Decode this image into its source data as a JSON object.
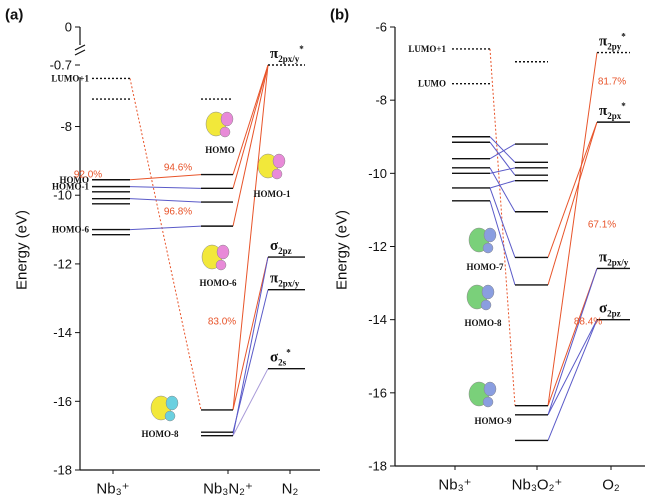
{
  "chart_data": [
    {
      "type": "energy-level",
      "panel_label": "(a)",
      "y_label": "Energy (eV)",
      "categories": [
        "Nb₃⁺",
        "Nb₃N₂⁺",
        "N₂"
      ],
      "ylim": [
        -18,
        -6.5
      ],
      "yticks": [
        -18,
        -16,
        -14,
        -12,
        -10,
        -8
      ],
      "ylim_upper": [
        -0.7,
        0
      ],
      "yticks_upper": [
        -0.7,
        0
      ],
      "levels": [
        [
          {
            "energy": -6.6,
            "style": "dotted",
            "name": "LUMO+1"
          },
          {
            "energy": -7.2,
            "style": "dotted"
          },
          {
            "energy": -9.55,
            "name": "HOMO"
          },
          {
            "energy": -9.75,
            "name": "HOMO-1"
          },
          {
            "energy": -9.9
          },
          {
            "energy": -10.1
          },
          {
            "energy": -10.25
          },
          {
            "energy": -11.0,
            "name": "HOMO-6"
          },
          {
            "energy": -11.15
          }
        ],
        [
          {
            "energy": -7.2,
            "style": "dotted"
          },
          {
            "energy": -9.4
          },
          {
            "energy": -9.8
          },
          {
            "energy": -10.2
          },
          {
            "energy": -10.9
          },
          {
            "energy": -16.25
          },
          {
            "energy": -16.9
          },
          {
            "energy": -17.0
          }
        ],
        [
          {
            "energy": -0.7,
            "style": "dotted",
            "label": {
              "text": "π",
              "sub": "2px/y",
              "sup": "*"
            }
          },
          {
            "energy": -11.8,
            "label": {
              "text": "σ",
              "sub": "2pz"
            }
          },
          {
            "energy": -12.75,
            "label": {
              "text": "π",
              "sub": "2px/y"
            }
          },
          {
            "energy": -15.05,
            "label": {
              "text": "σ",
              "sub": "2s",
              "sup": "*"
            }
          }
        ]
      ],
      "links": [
        {
          "from": [
            0,
            0
          ],
          "to": [
            1,
            5
          ],
          "color": "#e8542a",
          "style": "dotted"
        },
        {
          "from": [
            1,
            5
          ],
          "to": [
            2,
            0
          ],
          "color": "#e8542a"
        },
        {
          "from": [
            0,
            2
          ],
          "to": [
            1,
            1
          ],
          "color": "#e8542a"
        },
        {
          "from": [
            1,
            1
          ],
          "to": [
            2,
            0
          ],
          "color": "#e8542a"
        },
        {
          "from": [
            1,
            2
          ],
          "to": [
            2,
            0
          ],
          "color": "#e8542a"
        },
        {
          "from": [
            1,
            4
          ],
          "to": [
            2,
            0
          ],
          "color": "#e8542a"
        },
        {
          "from": [
            0,
            3
          ],
          "to": [
            1,
            2
          ],
          "color": "#5a5ac8"
        },
        {
          "from": [
            0,
            5
          ],
          "to": [
            1,
            3
          ],
          "color": "#5a5ac8"
        },
        {
          "from": [
            0,
            7
          ],
          "to": [
            1,
            4
          ],
          "color": "#5a5ac8"
        },
        {
          "from": [
            1,
            5
          ],
          "to": [
            2,
            1
          ],
          "color": "#e8542a"
        },
        {
          "from": [
            1,
            6
          ],
          "to": [
            2,
            2
          ],
          "color": "#5a5ac8"
        },
        {
          "from": [
            1,
            7
          ],
          "to": [
            2,
            1
          ],
          "color": "#5a5ac8"
        },
        {
          "from": [
            1,
            7
          ],
          "to": [
            2,
            3
          ],
          "color": "#a89ad8"
        }
      ],
      "orbital_labels": [
        "HOMO",
        "HOMO-1",
        "HOMO-6",
        "HOMO-8"
      ],
      "annotations": [
        "92.0%",
        "94.6%",
        "96.8%",
        "83.0%"
      ]
    },
    {
      "type": "energy-level",
      "panel_label": "(b)",
      "y_label": "Energy (eV)",
      "categories": [
        "Nb₃⁺",
        "Nb₃O₂⁺",
        "O₂"
      ],
      "ylim": [
        -18,
        -6
      ],
      "yticks": [
        -18,
        -16,
        -14,
        -12,
        -10,
        -8,
        -6
      ],
      "levels": [
        [
          {
            "energy": -6.6,
            "style": "dotted",
            "name": "LUMO+1"
          },
          {
            "energy": -7.55,
            "style": "dotted",
            "name": "LUMO"
          },
          {
            "energy": -9.0
          },
          {
            "energy": -9.15
          },
          {
            "energy": -9.6
          },
          {
            "energy": -9.85
          },
          {
            "energy": -10.0
          },
          {
            "energy": -10.4
          },
          {
            "energy": -10.75
          }
        ],
        [
          {
            "energy": -6.95,
            "style": "dotted"
          },
          {
            "energy": -9.2
          },
          {
            "energy": -9.7
          },
          {
            "energy": -9.85
          },
          {
            "energy": -10.05
          },
          {
            "energy": -10.2
          },
          {
            "energy": -11.05
          },
          {
            "energy": -12.3
          },
          {
            "energy": -13.05
          },
          {
            "energy": -16.35
          },
          {
            "energy": -16.6
          },
          {
            "energy": -17.3
          }
        ],
        [
          {
            "energy": -6.7,
            "style": "dotted",
            "label": {
              "text": "π",
              "sub": "2py",
              "sup": "*"
            }
          },
          {
            "energy": -8.6,
            "label": {
              "text": "π",
              "sub": "2px",
              "sup": "*"
            }
          },
          {
            "energy": -12.6,
            "label": {
              "text": "π",
              "sub": "2px/y"
            }
          },
          {
            "energy": -14.0,
            "label": {
              "text": "σ",
              "sub": "2pz"
            }
          }
        ]
      ],
      "links": [
        {
          "from": [
            0,
            0
          ],
          "to": [
            1,
            9
          ],
          "color": "#e8542a",
          "style": "dotted"
        },
        {
          "from": [
            1,
            9
          ],
          "to": [
            2,
            0
          ],
          "color": "#e8542a"
        },
        {
          "from": [
            1,
            7
          ],
          "to": [
            2,
            1
          ],
          "color": "#e8542a"
        },
        {
          "from": [
            1,
            8
          ],
          "to": [
            2,
            1
          ],
          "color": "#e8542a"
        },
        {
          "from": [
            1,
            9
          ],
          "to": [
            2,
            2
          ],
          "color": "#e8542a"
        },
        {
          "from": [
            1,
            10
          ],
          "to": [
            2,
            2
          ],
          "color": "#5a5ac8"
        },
        {
          "from": [
            1,
            10
          ],
          "to": [
            2,
            3
          ],
          "color": "#5a5ac8"
        },
        {
          "from": [
            1,
            11
          ],
          "to": [
            2,
            3
          ],
          "color": "#5a5ac8"
        },
        {
          "from": [
            0,
            2
          ],
          "to": [
            1,
            2
          ],
          "color": "#5a5ac8"
        },
        {
          "from": [
            0,
            3
          ],
          "to": [
            1,
            4
          ],
          "color": "#5a5ac8"
        },
        {
          "from": [
            0,
            4
          ],
          "to": [
            1,
            1
          ],
          "color": "#5a5ac8"
        },
        {
          "from": [
            0,
            5
          ],
          "to": [
            1,
            6
          ],
          "color": "#5a5ac8"
        },
        {
          "from": [
            0,
            6
          ],
          "to": [
            1,
            3
          ],
          "color": "#5a5ac8"
        },
        {
          "from": [
            0,
            7
          ],
          "to": [
            1,
            5
          ],
          "color": "#5a5ac8"
        },
        {
          "from": [
            0,
            7
          ],
          "to": [
            1,
            7
          ],
          "color": "#5a5ac8"
        },
        {
          "from": [
            0,
            8
          ],
          "to": [
            1,
            8
          ],
          "color": "#5a5ac8"
        }
      ],
      "orbital_labels": [
        "HOMO-7",
        "HOMO-8",
        "HOMO-9"
      ],
      "annotations": [
        "81.7%",
        "67.1%",
        "88.4%"
      ]
    }
  ]
}
